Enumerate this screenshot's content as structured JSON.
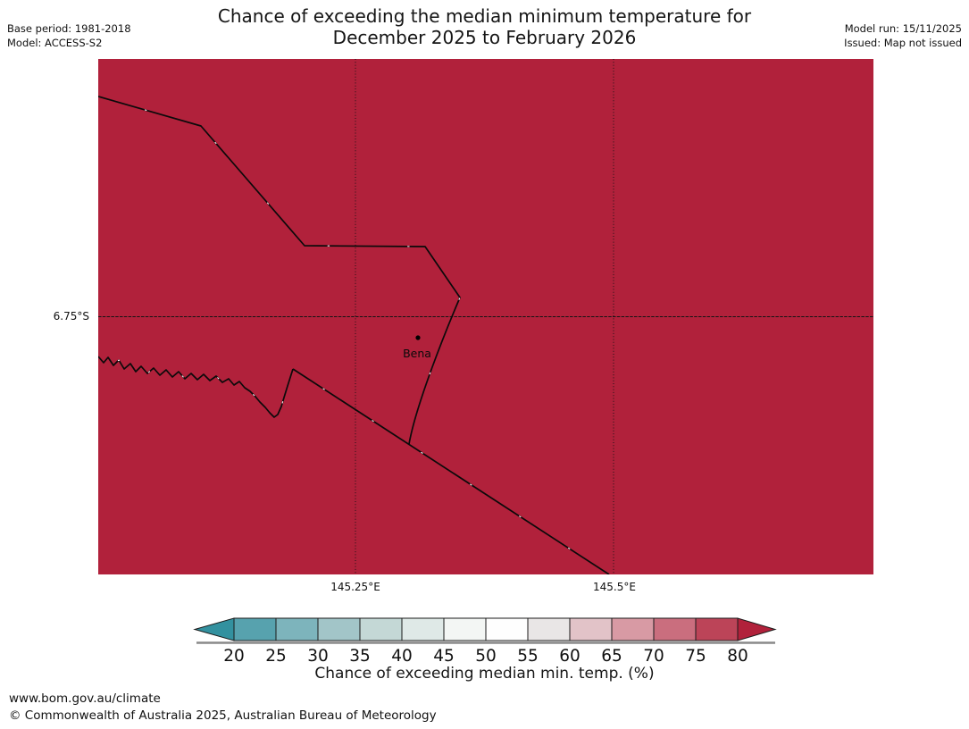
{
  "header": {
    "title_line1": "Chance of exceeding the median minimum temperature for",
    "title_line2": "December 2025 to February 2026",
    "base_period": "Base period: 1981-2018",
    "model": "Model: ACCESS-S2",
    "model_run": "Model run: 15/11/2025",
    "issued": "Issued: Map not issued"
  },
  "map": {
    "fill_color": "#b1213b",
    "line_color": "#0a0a0a",
    "location_label": "Bena",
    "y_axis_label": "6.75°S",
    "x_axis_labels": [
      "145.25°E",
      "145.5°E"
    ]
  },
  "colorbar": {
    "caption": "Chance of exceeding median min. temp. (%)",
    "tick_labels": [
      "20",
      "25",
      "30",
      "35",
      "40",
      "45",
      "50",
      "55",
      "60",
      "65",
      "70",
      "75",
      "80"
    ],
    "segment_colors": [
      "#57a2ae",
      "#7db4bc",
      "#a2c5c8",
      "#c4d8d6",
      "#dfe9e7",
      "#f3f6f4",
      "#fefefe",
      "#e9e6e6",
      "#e2c3c8",
      "#d89aa4",
      "#ca6e7e",
      "#bc4458"
    ],
    "arrow_left_color": "#33919f",
    "arrow_right_color": "#b1213b",
    "border_color": "#1a1a1a",
    "shadow_color": "#8a8a8a"
  },
  "footer": {
    "url": "www.bom.gov.au/climate",
    "copyright": "© Commonwealth of Australia 2025, Australian Bureau of Meteorology"
  },
  "chart_data": {
    "type": "heatmap",
    "title": "Chance of exceeding the median minimum temperature for December 2025 to February 2026",
    "legend_label": "Chance of exceeding median min. temp. (%)",
    "scale_ticks": [
      20,
      25,
      30,
      35,
      40,
      45,
      50,
      55,
      60,
      65,
      70,
      75,
      80
    ],
    "map_region_value": ">80",
    "latitude_gridlines": [
      "6.75°S"
    ],
    "longitude_gridlines": [
      "145.25°E",
      "145.5°E"
    ],
    "marked_location": {
      "name": "Bena"
    }
  }
}
